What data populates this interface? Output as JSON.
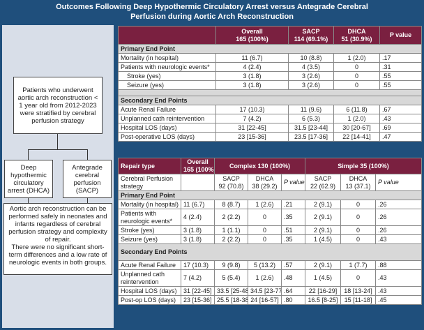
{
  "title_line1": "Outcomes Following Deep Hypothermic Circulatory Arrest versus Antegrade Cerebral",
  "title_line2": "Perfusion during Aortic Arch Reconstruction",
  "flow": {
    "top": "Patients who underwent aortic arch reconstruction < 1 year old from 2012-2023 were stratified by cerebral perfusion strategy",
    "left": "Deep hypothermic circulatory arrest (DHCA)",
    "right": "Antegrade cerebral perfusion (SACP)",
    "bottom1": "Aortic arch reconstruction can be performed safely in neonates and infants regardless of cerebral perfusion strategy and complexity of repair.",
    "bottom2": "There were no significant short-term differences and a low rate of neurologic events in both groups."
  },
  "t1": {
    "h": [
      "Overall",
      "165 (100%)",
      "SACP",
      "114 (69.1%)",
      "DHCA",
      "51 (30.9%)",
      "P value"
    ],
    "primary": "Primary End Point",
    "secondary": "Secondary End Points",
    "rows": [
      [
        "Mortality (in hospital)",
        "11 (6.7)",
        "10 (8.8)",
        "1 (2.0)",
        ".17"
      ],
      [
        "Patients with neurologic events*",
        "4 (2.4)",
        "4 (3.5)",
        "0",
        ".31"
      ],
      [
        "Stroke (yes)",
        "3 (1.8)",
        "3 (2.6)",
        "0",
        ".55"
      ],
      [
        "Seizure (yes)",
        "3 (1.8)",
        "3 (2.6)",
        "0",
        ".55"
      ],
      [
        "Acute Renal Failure",
        "17 (10.3)",
        "11 (9.6)",
        "6 (11.8)",
        ".67"
      ],
      [
        "Unplanned cath reintervention",
        "7 (4.2)",
        "6 (5.3)",
        "1 (2.0)",
        ".43"
      ],
      [
        "Hospital LOS (days)",
        "31 [22-45]",
        "31.5 [23-44]",
        "30 [20-67]",
        ".69"
      ],
      [
        "Post-operative LOS (days)",
        "23 [15-36]",
        "23.5 [17-36]",
        "22 [14-41]",
        ".47"
      ]
    ]
  },
  "t2": {
    "h": [
      "Repair type",
      "Overall",
      "165 (100%)",
      "Complex 130 (100%)",
      "Simple 35 (100%)"
    ],
    "sub": [
      "Cerebral Perfusion strategy",
      "SACP",
      "92 (70.8)",
      "DHCA",
      "38 (29.2)",
      "P value",
      "SACP",
      "22 (62.9)",
      "DHCA",
      "13 (37.1)",
      "P value"
    ],
    "primary": "Primary End Point",
    "secondary": "Secondary End Points",
    "rows": [
      [
        "Mortality (in hospital)",
        "11 (6.7)",
        "8 (8.7)",
        "1 (2.6)",
        ".21",
        "2 (9.1)",
        "0",
        ".26"
      ],
      [
        "Patients with neurologic events*",
        "4 (2.4)",
        "2 (2.2)",
        "0",
        ".35",
        "2 (9.1)",
        "0",
        ".26"
      ],
      [
        "Stroke (yes)",
        "3 (1.8)",
        "1 (1.1)",
        "0",
        ".51",
        "2 (9.1)",
        "0",
        ".26"
      ],
      [
        "Seizure (yes)",
        "3 (1.8)",
        "2 (2.2)",
        "0",
        ".35",
        "1 (4.5)",
        "0",
        ".43"
      ],
      [
        "Acute Renal Failure",
        "17 (10.3)",
        "9 (9.8)",
        "5 (13.2)",
        ".57",
        "2 (9.1)",
        "1 (7.7)",
        ".88"
      ],
      [
        "Unplanned cath reintervention",
        "7 (4.2)",
        "5 (5.4)",
        "1 (2.6)",
        ".48",
        "1 (4.5)",
        "0",
        ".43"
      ],
      [
        "Hospital LOS (days)",
        "31 [22-45]",
        "33.5 [25-48]",
        "34.5 [23-77]",
        ".64",
        "22 [16-29]",
        "18 [13-24]",
        ".43"
      ],
      [
        "Post-op LOS (days)",
        "23 [15-36]",
        "25.5 [18-38]",
        "24 [16-57]",
        ".80",
        "16.5 [8-25]",
        "15 [11-18]",
        ".45"
      ]
    ]
  }
}
